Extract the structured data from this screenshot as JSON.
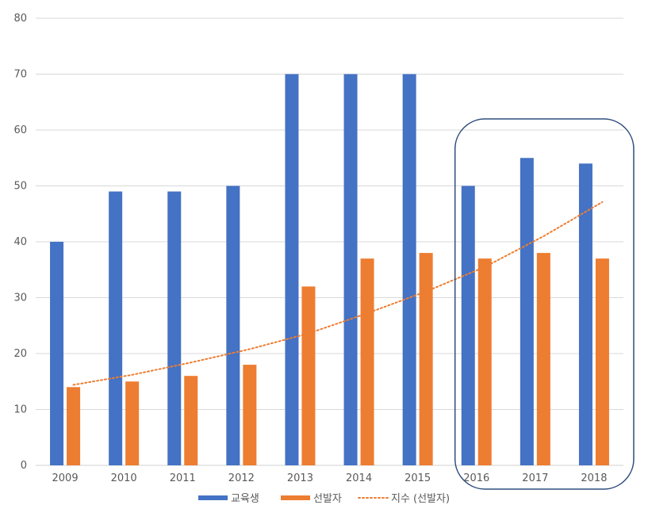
{
  "chart_data": {
    "type": "bar",
    "categories": [
      "2009",
      "2010",
      "2011",
      "2012",
      "2013",
      "2014",
      "2015",
      "2016",
      "2017",
      "2018"
    ],
    "series": [
      {
        "name": "교육생",
        "color": "#4472C4",
        "values": [
          40,
          49,
          49,
          50,
          70,
          70,
          70,
          50,
          55,
          54
        ]
      },
      {
        "name": "선발자",
        "color": "#ED7D31",
        "values": [
          14,
          15,
          16,
          18,
          32,
          37,
          38,
          37,
          38,
          37
        ]
      }
    ],
    "trendline": {
      "name": "지수 (선발자)",
      "type": "exponential",
      "color": "#ED7D31",
      "style": "dotted",
      "values": [
        14.4,
        16.2,
        18.4,
        20.8,
        23.6,
        27.2,
        31.1,
        35.5,
        41.0,
        47.1
      ]
    },
    "ylim": [
      0,
      80
    ],
    "yticks": [
      0,
      10,
      20,
      30,
      40,
      50,
      60,
      70,
      80
    ],
    "title": "",
    "xlabel": "",
    "ylabel": "",
    "grid": true,
    "legend_position": "bottom",
    "highlight": {
      "from": "2016",
      "to": "2018",
      "color": "#2F4E7D"
    }
  }
}
